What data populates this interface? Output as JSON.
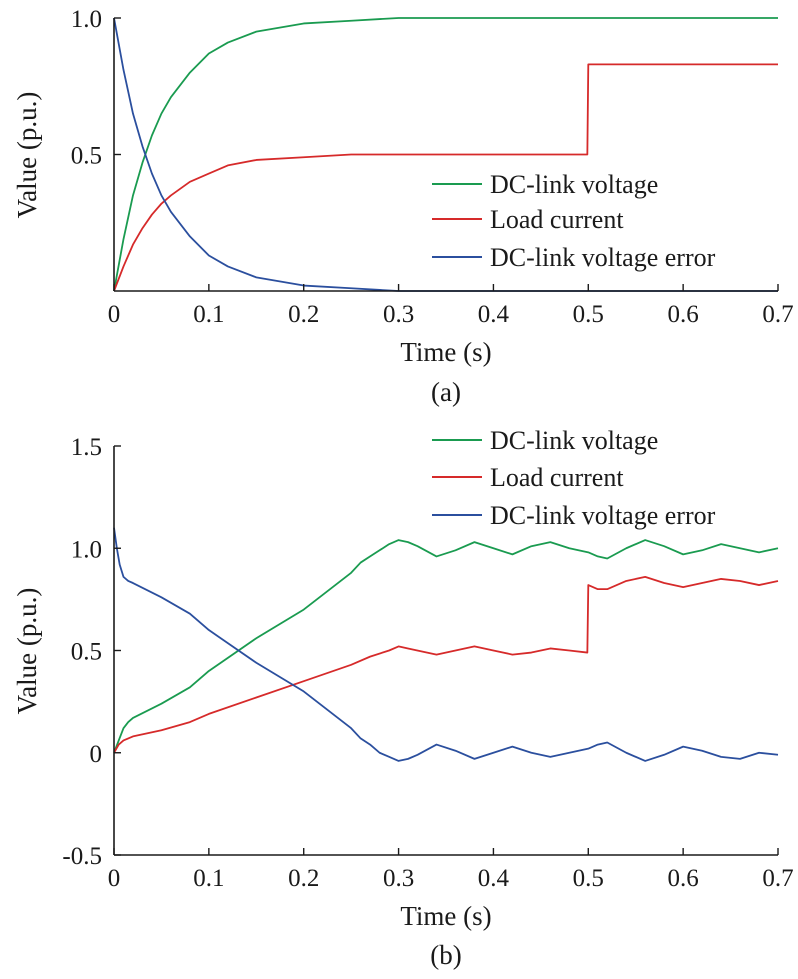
{
  "chart_data": [
    {
      "type": "line",
      "caption": "(a)",
      "xlabel": "Time (s)",
      "ylabel": "Value (p.u.)",
      "xlim": [
        0,
        0.7
      ],
      "ylim": [
        0,
        1.0
      ],
      "xticks": [
        0,
        0.1,
        0.2,
        0.3,
        0.4,
        0.5,
        0.6,
        0.7
      ],
      "xtick_labels": [
        "0",
        "0.1",
        "0.2",
        "0.3",
        "0.4",
        "0.5",
        "0.6",
        "0.7"
      ],
      "yticks": [
        0.5,
        1.0
      ],
      "ytick_labels": [
        "0.5",
        "1.0"
      ],
      "grid": false,
      "legend_position": "bottom-right",
      "series": [
        {
          "name": "DC-link voltage",
          "color": "#1a9b50",
          "x": [
            0,
            0.01,
            0.02,
            0.03,
            0.04,
            0.05,
            0.06,
            0.08,
            0.1,
            0.12,
            0.15,
            0.2,
            0.25,
            0.3,
            0.4,
            0.5,
            0.6,
            0.7
          ],
          "y": [
            0,
            0.19,
            0.35,
            0.47,
            0.57,
            0.65,
            0.71,
            0.8,
            0.87,
            0.91,
            0.95,
            0.98,
            0.99,
            1.0,
            1.0,
            1.0,
            1.0,
            1.0
          ]
        },
        {
          "name": "Load current",
          "color": "#d62a2a",
          "x": [
            0,
            0.01,
            0.02,
            0.03,
            0.04,
            0.05,
            0.06,
            0.08,
            0.1,
            0.12,
            0.15,
            0.2,
            0.25,
            0.3,
            0.4,
            0.499,
            0.5,
            0.6,
            0.7
          ],
          "y": [
            0,
            0.09,
            0.17,
            0.23,
            0.28,
            0.32,
            0.35,
            0.4,
            0.43,
            0.46,
            0.48,
            0.49,
            0.5,
            0.5,
            0.5,
            0.5,
            0.83,
            0.83,
            0.83
          ]
        },
        {
          "name": "DC-link voltage error",
          "color": "#2b4f9e",
          "x": [
            0,
            0.01,
            0.02,
            0.03,
            0.04,
            0.05,
            0.06,
            0.08,
            0.1,
            0.12,
            0.15,
            0.2,
            0.25,
            0.3,
            0.4,
            0.5,
            0.6,
            0.7
          ],
          "y": [
            1.0,
            0.81,
            0.65,
            0.53,
            0.43,
            0.35,
            0.29,
            0.2,
            0.13,
            0.09,
            0.05,
            0.02,
            0.01,
            0.0,
            0.0,
            0.0,
            0.0,
            0.0
          ]
        }
      ]
    },
    {
      "type": "line",
      "caption": "(b)",
      "xlabel": "Time (s)",
      "ylabel": "Value (p.u.)",
      "xlim": [
        0,
        0.7
      ],
      "ylim": [
        -0.5,
        1.5
      ],
      "xticks": [
        0,
        0.1,
        0.2,
        0.3,
        0.4,
        0.5,
        0.6,
        0.7
      ],
      "xtick_labels": [
        "0",
        "0.1",
        "0.2",
        "0.3",
        "0.4",
        "0.5",
        "0.6",
        "0.7"
      ],
      "yticks": [
        -0.5,
        0,
        0.5,
        1.0,
        1.5
      ],
      "ytick_labels": [
        "-0.5",
        "0",
        "0.5",
        "1.0",
        "1.5"
      ],
      "grid": false,
      "legend_position": "top-right",
      "series": [
        {
          "name": "DC-link voltage",
          "color": "#1a9b50",
          "x": [
            0,
            0.005,
            0.01,
            0.015,
            0.02,
            0.05,
            0.08,
            0.1,
            0.15,
            0.2,
            0.25,
            0.26,
            0.27,
            0.28,
            0.29,
            0.3,
            0.31,
            0.32,
            0.34,
            0.36,
            0.38,
            0.4,
            0.42,
            0.44,
            0.46,
            0.48,
            0.5,
            0.51,
            0.52,
            0.54,
            0.56,
            0.58,
            0.6,
            0.62,
            0.64,
            0.66,
            0.68,
            0.7
          ],
          "y": [
            0,
            0.06,
            0.12,
            0.15,
            0.17,
            0.24,
            0.32,
            0.4,
            0.56,
            0.7,
            0.88,
            0.93,
            0.96,
            0.99,
            1.02,
            1.04,
            1.03,
            1.01,
            0.96,
            0.99,
            1.03,
            1.0,
            0.97,
            1.01,
            1.03,
            1.0,
            0.98,
            0.96,
            0.95,
            1.0,
            1.04,
            1.01,
            0.97,
            0.99,
            1.02,
            1.0,
            0.98,
            1.0
          ]
        },
        {
          "name": "Load current",
          "color": "#d62a2a",
          "x": [
            0,
            0.005,
            0.01,
            0.015,
            0.02,
            0.05,
            0.08,
            0.1,
            0.15,
            0.2,
            0.25,
            0.27,
            0.29,
            0.3,
            0.31,
            0.34,
            0.36,
            0.38,
            0.4,
            0.42,
            0.44,
            0.46,
            0.48,
            0.499,
            0.5,
            0.51,
            0.52,
            0.54,
            0.56,
            0.58,
            0.6,
            0.62,
            0.64,
            0.66,
            0.68,
            0.7
          ],
          "y": [
            0,
            0.04,
            0.06,
            0.07,
            0.08,
            0.11,
            0.15,
            0.19,
            0.27,
            0.35,
            0.43,
            0.47,
            0.5,
            0.52,
            0.51,
            0.48,
            0.5,
            0.52,
            0.5,
            0.48,
            0.49,
            0.51,
            0.5,
            0.49,
            0.82,
            0.8,
            0.8,
            0.84,
            0.86,
            0.83,
            0.81,
            0.83,
            0.85,
            0.84,
            0.82,
            0.84
          ]
        },
        {
          "name": "DC-link voltage error",
          "color": "#2b4f9e",
          "x": [
            0,
            0.003,
            0.006,
            0.01,
            0.015,
            0.02,
            0.05,
            0.08,
            0.1,
            0.15,
            0.2,
            0.25,
            0.26,
            0.27,
            0.28,
            0.29,
            0.3,
            0.31,
            0.32,
            0.34,
            0.36,
            0.38,
            0.4,
            0.42,
            0.44,
            0.46,
            0.48,
            0.5,
            0.51,
            0.52,
            0.54,
            0.56,
            0.58,
            0.6,
            0.62,
            0.64,
            0.66,
            0.68,
            0.7
          ],
          "y": [
            1.1,
            1.0,
            0.92,
            0.86,
            0.84,
            0.83,
            0.76,
            0.68,
            0.6,
            0.44,
            0.3,
            0.12,
            0.07,
            0.04,
            0.0,
            -0.02,
            -0.04,
            -0.03,
            -0.01,
            0.04,
            0.01,
            -0.03,
            0.0,
            0.03,
            0.0,
            -0.02,
            0.0,
            0.02,
            0.04,
            0.05,
            0.0,
            -0.04,
            -0.01,
            0.03,
            0.01,
            -0.02,
            -0.03,
            0.0,
            -0.01
          ]
        }
      ]
    }
  ]
}
